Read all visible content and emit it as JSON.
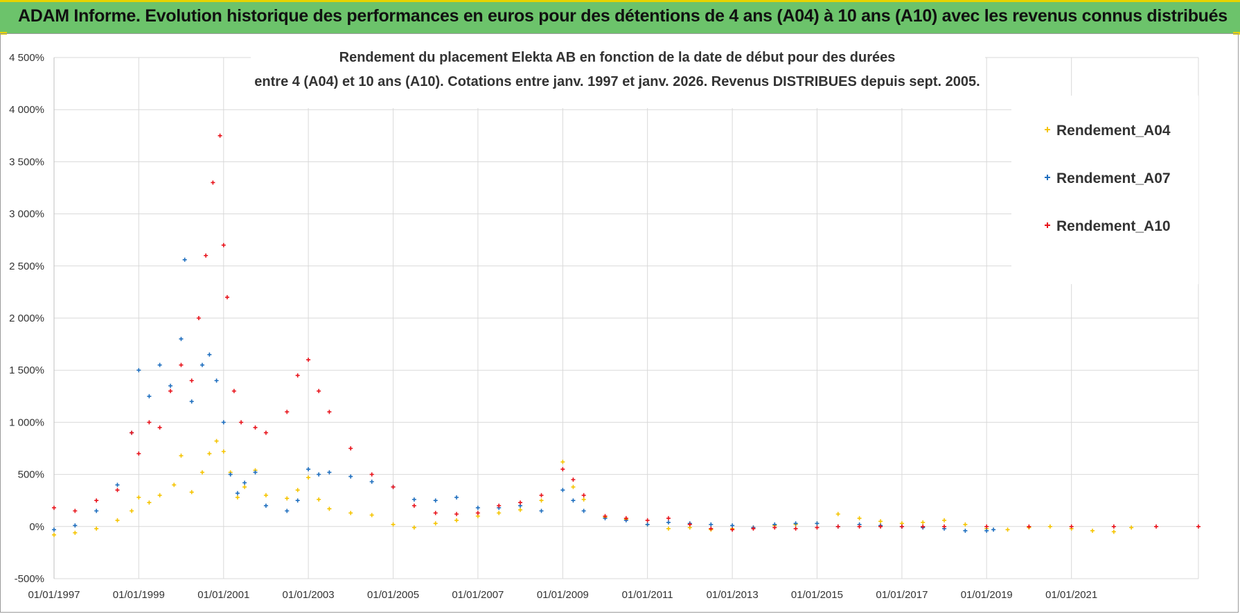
{
  "banner": {
    "title": "ADAM Informe. Evolution historique des performances en euros pour des détentions de 4 ans (A04) à 10 ans (A10) avec les revenus connus distribués"
  },
  "colors": {
    "banner_bg": "#6cc36b",
    "accent_yellow": "#e8d300",
    "A04": "#f5c400",
    "A07": "#1f6fbf",
    "A10": "#e8141c"
  },
  "chart_data": {
    "type": "scatter",
    "title_lines": [
      "Rendement du placement Elekta AB en fonction de la date de début pour des durées",
      "entre 4 (A04) et 10 ans (A10).  Cotations entre janv. 1997 et janv. 2026. Revenus DISTRIBUES depuis sept. 2005."
    ],
    "xlabel": "",
    "ylabel": "",
    "xlim": [
      "1997-01-01",
      "2023-12-31"
    ],
    "ylim": [
      -500,
      4500
    ],
    "y_ticks": [
      -500,
      0,
      500,
      1000,
      1500,
      2000,
      2500,
      3000,
      3500,
      4000,
      4500
    ],
    "y_tick_labels": [
      "-500%",
      "0%",
      "500%",
      "1 000%",
      "1 500%",
      "2 000%",
      "2 500%",
      "3 000%",
      "3 500%",
      "4 000%",
      "4 500%"
    ],
    "x_ticks": [
      "1997-01-01",
      "1999-01-01",
      "2001-01-01",
      "2003-01-01",
      "2005-01-01",
      "2007-01-01",
      "2009-01-01",
      "2011-01-01",
      "2013-01-01",
      "2015-01-01",
      "2017-01-01",
      "2019-01-01",
      "2021-01-01"
    ],
    "x_tick_labels": [
      "01/01/1997",
      "01/01/1999",
      "01/01/2001",
      "01/01/2003",
      "01/01/2005",
      "01/01/2007",
      "01/01/2009",
      "01/01/2011",
      "01/01/2013",
      "01/01/2015",
      "01/01/2017",
      "01/01/2019",
      "01/01/2021"
    ],
    "grid": true,
    "legend_position": "top-right",
    "series": [
      {
        "name": "Rendement_A04",
        "marker": "+",
        "points": [
          [
            "1997-01-01",
            -80
          ],
          [
            "1997-07-01",
            -60
          ],
          [
            "1998-01-01",
            -20
          ],
          [
            "1998-07-01",
            60
          ],
          [
            "1998-11-01",
            150
          ],
          [
            "1999-01-01",
            280
          ],
          [
            "1999-04-01",
            230
          ],
          [
            "1999-07-01",
            300
          ],
          [
            "1999-11-01",
            400
          ],
          [
            "2000-01-01",
            680
          ],
          [
            "2000-04-01",
            330
          ],
          [
            "2000-07-01",
            520
          ],
          [
            "2000-09-01",
            700
          ],
          [
            "2000-11-01",
            820
          ],
          [
            "2001-01-01",
            720
          ],
          [
            "2001-03-01",
            520
          ],
          [
            "2001-05-01",
            280
          ],
          [
            "2001-07-01",
            380
          ],
          [
            "2001-10-01",
            540
          ],
          [
            "2002-01-01",
            300
          ],
          [
            "2002-07-01",
            270
          ],
          [
            "2002-10-01",
            350
          ],
          [
            "2003-01-01",
            470
          ],
          [
            "2003-04-01",
            260
          ],
          [
            "2003-07-01",
            170
          ],
          [
            "2004-01-01",
            130
          ],
          [
            "2004-07-01",
            110
          ],
          [
            "2005-01-01",
            20
          ],
          [
            "2005-07-01",
            -10
          ],
          [
            "2006-01-01",
            30
          ],
          [
            "2006-07-01",
            60
          ],
          [
            "2007-01-01",
            100
          ],
          [
            "2007-07-01",
            130
          ],
          [
            "2008-01-01",
            160
          ],
          [
            "2008-07-01",
            250
          ],
          [
            "2009-01-01",
            620
          ],
          [
            "2009-04-01",
            380
          ],
          [
            "2009-07-01",
            260
          ],
          [
            "2010-01-01",
            90
          ],
          [
            "2010-07-01",
            70
          ],
          [
            "2011-01-01",
            20
          ],
          [
            "2011-07-01",
            -20
          ],
          [
            "2012-01-01",
            -10
          ],
          [
            "2012-07-01",
            -30
          ],
          [
            "2013-01-01",
            -20
          ],
          [
            "2013-07-01",
            -10
          ],
          [
            "2014-01-01",
            10
          ],
          [
            "2014-07-01",
            20
          ],
          [
            "2015-01-01",
            30
          ],
          [
            "2015-07-01",
            120
          ],
          [
            "2016-01-01",
            80
          ],
          [
            "2016-07-01",
            50
          ],
          [
            "2017-01-01",
            30
          ],
          [
            "2017-07-01",
            40
          ],
          [
            "2018-01-01",
            60
          ],
          [
            "2018-07-01",
            20
          ],
          [
            "2019-01-01",
            -20
          ],
          [
            "2019-07-01",
            -30
          ],
          [
            "2020-01-01",
            -10
          ],
          [
            "2020-07-01",
            0
          ],
          [
            "2021-01-01",
            -20
          ],
          [
            "2021-07-01",
            -40
          ],
          [
            "2022-01-01",
            -50
          ],
          [
            "2022-06-01",
            -10
          ]
        ]
      },
      {
        "name": "Rendement_A07",
        "marker": "+",
        "points": [
          [
            "1997-01-01",
            -30
          ],
          [
            "1997-07-01",
            10
          ],
          [
            "1998-01-01",
            150
          ],
          [
            "1998-07-01",
            400
          ],
          [
            "1998-11-01",
            900
          ],
          [
            "1999-01-01",
            1500
          ],
          [
            "1999-04-01",
            1250
          ],
          [
            "1999-07-01",
            1550
          ],
          [
            "1999-10-01",
            1350
          ],
          [
            "2000-01-01",
            1800
          ],
          [
            "2000-02-01",
            2560
          ],
          [
            "2000-04-01",
            1200
          ],
          [
            "2000-07-01",
            1550
          ],
          [
            "2000-09-01",
            1650
          ],
          [
            "2000-11-01",
            1400
          ],
          [
            "2001-01-01",
            1000
          ],
          [
            "2001-03-01",
            500
          ],
          [
            "2001-05-01",
            320
          ],
          [
            "2001-07-01",
            420
          ],
          [
            "2001-10-01",
            520
          ],
          [
            "2002-01-01",
            200
          ],
          [
            "2002-07-01",
            150
          ],
          [
            "2002-10-01",
            250
          ],
          [
            "2003-01-01",
            550
          ],
          [
            "2003-04-01",
            500
          ],
          [
            "2003-07-01",
            520
          ],
          [
            "2004-01-01",
            480
          ],
          [
            "2004-07-01",
            430
          ],
          [
            "2005-01-01",
            380
          ],
          [
            "2005-07-01",
            260
          ],
          [
            "2006-01-01",
            250
          ],
          [
            "2006-07-01",
            280
          ],
          [
            "2007-01-01",
            180
          ],
          [
            "2007-07-01",
            180
          ],
          [
            "2008-01-01",
            200
          ],
          [
            "2008-07-01",
            150
          ],
          [
            "2009-01-01",
            350
          ],
          [
            "2009-04-01",
            250
          ],
          [
            "2009-07-01",
            150
          ],
          [
            "2010-01-01",
            80
          ],
          [
            "2010-07-01",
            60
          ],
          [
            "2011-01-01",
            20
          ],
          [
            "2011-07-01",
            40
          ],
          [
            "2012-01-01",
            30
          ],
          [
            "2012-07-01",
            20
          ],
          [
            "2013-01-01",
            10
          ],
          [
            "2013-07-01",
            -10
          ],
          [
            "2014-01-01",
            20
          ],
          [
            "2014-07-01",
            30
          ],
          [
            "2015-01-01",
            30
          ],
          [
            "2015-07-01",
            0
          ],
          [
            "2016-01-01",
            20
          ],
          [
            "2016-07-01",
            10
          ],
          [
            "2017-01-01",
            0
          ],
          [
            "2017-07-01",
            -10
          ],
          [
            "2018-01-01",
            -20
          ],
          [
            "2018-07-01",
            -40
          ],
          [
            "2019-01-01",
            -40
          ],
          [
            "2019-03-01",
            -30
          ]
        ]
      },
      {
        "name": "Rendement_A10",
        "marker": "+",
        "points": [
          [
            "1997-01-01",
            180
          ],
          [
            "1997-07-01",
            150
          ],
          [
            "1998-01-01",
            250
          ],
          [
            "1998-07-01",
            350
          ],
          [
            "1998-11-01",
            900
          ],
          [
            "1999-01-01",
            700
          ],
          [
            "1999-04-01",
            1000
          ],
          [
            "1999-07-01",
            950
          ],
          [
            "1999-10-01",
            1300
          ],
          [
            "2000-01-01",
            1550
          ],
          [
            "2000-04-01",
            1400
          ],
          [
            "2000-06-01",
            2000
          ],
          [
            "2000-08-01",
            2600
          ],
          [
            "2000-10-01",
            3300
          ],
          [
            "2000-12-01",
            3750
          ],
          [
            "2001-01-01",
            2700
          ],
          [
            "2001-02-01",
            2200
          ],
          [
            "2001-04-01",
            1300
          ],
          [
            "2001-06-01",
            1000
          ],
          [
            "2001-10-01",
            950
          ],
          [
            "2002-01-01",
            900
          ],
          [
            "2002-07-01",
            1100
          ],
          [
            "2002-10-01",
            1450
          ],
          [
            "2003-01-01",
            1600
          ],
          [
            "2003-04-01",
            1300
          ],
          [
            "2003-07-01",
            1100
          ],
          [
            "2004-01-01",
            750
          ],
          [
            "2004-07-01",
            500
          ],
          [
            "2005-01-01",
            380
          ],
          [
            "2005-07-01",
            200
          ],
          [
            "2006-01-01",
            130
          ],
          [
            "2006-07-01",
            120
          ],
          [
            "2007-01-01",
            130
          ],
          [
            "2007-07-01",
            200
          ],
          [
            "2008-01-01",
            230
          ],
          [
            "2008-07-01",
            300
          ],
          [
            "2009-01-01",
            550
          ],
          [
            "2009-04-01",
            450
          ],
          [
            "2009-07-01",
            300
          ],
          [
            "2010-01-01",
            100
          ],
          [
            "2010-07-01",
            80
          ],
          [
            "2011-01-01",
            60
          ],
          [
            "2011-07-01",
            80
          ],
          [
            "2012-01-01",
            20
          ],
          [
            "2012-07-01",
            -20
          ],
          [
            "2013-01-01",
            -30
          ],
          [
            "2013-07-01",
            -20
          ],
          [
            "2014-01-01",
            -10
          ],
          [
            "2014-07-01",
            -20
          ],
          [
            "2015-01-01",
            -10
          ],
          [
            "2015-07-01",
            0
          ],
          [
            "2016-01-01",
            0
          ],
          [
            "2016-07-01",
            0
          ],
          [
            "2017-01-01",
            0
          ],
          [
            "2017-07-01",
            0
          ],
          [
            "2018-01-01",
            0
          ],
          [
            "2019-01-01",
            0
          ],
          [
            "2020-01-01",
            0
          ],
          [
            "2021-01-01",
            0
          ],
          [
            "2022-01-01",
            0
          ],
          [
            "2023-01-01",
            0
          ],
          [
            "2023-12-31",
            0
          ]
        ]
      }
    ]
  }
}
